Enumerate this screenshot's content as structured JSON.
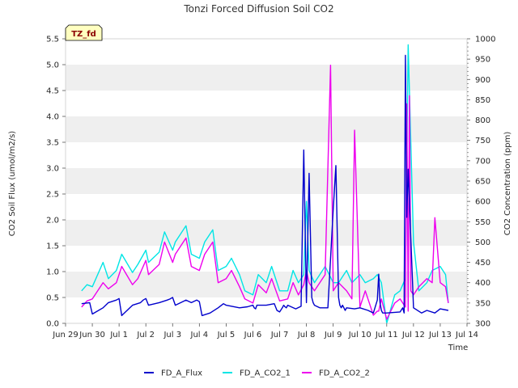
{
  "chart_data": {
    "type": "line",
    "title": "Tonzi Forced Diffusion Soil CO2",
    "badge": "TZ_fd",
    "xlabel": "Time",
    "ylabel_left": "CO2 Soil Flux (umol/m2/s)",
    "ylabel_right": "CO2 Concentration (ppm)",
    "xlim": [
      0,
      15
    ],
    "ylim_left": [
      0,
      5.5
    ],
    "ylim_right": [
      300,
      1000
    ],
    "x_tick_values": [
      0,
      1,
      2,
      3,
      4,
      5,
      6,
      7,
      8,
      9,
      10,
      11,
      12,
      13,
      14,
      15
    ],
    "x_tick_labels": [
      "Jun 29",
      "Jun 30",
      "Jul 1",
      "Jul 2",
      "Jul 3",
      "Jul 4",
      "Jul 5",
      "Jul 6",
      "Jul 7",
      "Jul 8",
      "Jul 9",
      "Jul 10",
      "Jul 11",
      "Jul 12",
      "Jul 13",
      "Jul 14"
    ],
    "y_left_ticks": [
      "0.0",
      "0.5",
      "1.0",
      "1.5",
      "2.0",
      "2.5",
      "3.0",
      "3.5",
      "4.0",
      "4.5",
      "5.0",
      "5.5"
    ],
    "y_right_ticks": [
      "300",
      "350",
      "400",
      "450",
      "500",
      "550",
      "600",
      "650",
      "700",
      "750",
      "800",
      "850",
      "900",
      "950",
      "1000"
    ],
    "band_interval": 0.5,
    "series": [
      {
        "name": "FD_A_Flux",
        "axis": "left",
        "color": "#0000cc",
        "x": [
          0.6,
          0.9,
          1.0,
          1.4,
          1.6,
          1.9,
          2.0,
          2.1,
          2.5,
          2.8,
          2.9,
          3.0,
          3.1,
          3.5,
          3.8,
          3.9,
          4.0,
          4.1,
          4.5,
          4.7,
          4.9,
          5.0,
          5.1,
          5.4,
          5.7,
          5.9,
          6.0,
          6.5,
          6.8,
          7.0,
          7.05,
          7.1,
          7.15,
          7.2,
          7.5,
          7.8,
          7.9,
          8.0,
          8.1,
          8.15,
          8.2,
          8.25,
          8.3,
          8.6,
          8.8,
          8.9,
          9.0,
          9.1,
          9.2,
          9.25,
          9.3,
          9.5,
          9.8,
          10.0,
          10.1,
          10.2,
          10.25,
          10.3,
          10.35,
          10.4,
          10.45,
          10.5,
          10.8,
          11.0,
          11.3,
          11.5,
          11.65,
          11.7,
          11.75,
          11.8,
          11.85,
          11.9,
          12.0,
          12.5,
          12.6,
          12.65,
          12.7,
          12.75,
          12.8,
          13.0,
          13.3,
          13.5,
          13.8,
          14.0,
          14.3
        ],
        "y": [
          0.38,
          0.4,
          0.18,
          0.3,
          0.4,
          0.45,
          0.48,
          0.15,
          0.35,
          0.4,
          0.45,
          0.48,
          0.35,
          0.4,
          0.45,
          0.47,
          0.5,
          0.35,
          0.45,
          0.4,
          0.45,
          0.42,
          0.15,
          0.2,
          0.3,
          0.38,
          0.35,
          0.3,
          0.32,
          0.35,
          0.3,
          0.28,
          0.35,
          0.35,
          0.35,
          0.38,
          0.25,
          0.22,
          0.3,
          0.35,
          0.32,
          0.3,
          0.35,
          0.28,
          0.33,
          3.35,
          0.4,
          2.9,
          0.5,
          0.4,
          0.35,
          0.3,
          0.3,
          2.2,
          3.05,
          0.5,
          0.35,
          0.3,
          0.35,
          0.3,
          0.25,
          0.3,
          0.28,
          0.3,
          0.25,
          0.2,
          0.45,
          0.95,
          0.4,
          0.25,
          0.2,
          0.2,
          0.2,
          0.22,
          0.3,
          0.2,
          5.18,
          2.05,
          2.98,
          0.3,
          0.2,
          0.25,
          0.2,
          0.28,
          0.25
        ]
      },
      {
        "name": "FD_A_CO2_1",
        "axis": "right",
        "color": "#00e5e5",
        "x": [
          0.6,
          0.8,
          1.0,
          1.4,
          1.6,
          1.9,
          2.1,
          2.5,
          2.7,
          3.0,
          3.1,
          3.5,
          3.7,
          4.0,
          4.1,
          4.5,
          4.7,
          5.0,
          5.2,
          5.5,
          5.7,
          6.0,
          6.2,
          6.5,
          6.7,
          7.0,
          7.2,
          7.5,
          7.7,
          8.0,
          8.3,
          8.5,
          8.7,
          8.9,
          9.0,
          9.1,
          9.3,
          9.5,
          9.7,
          10.0,
          10.2,
          10.5,
          10.7,
          11.0,
          11.2,
          11.5,
          11.65,
          11.8,
          12.0,
          12.3,
          12.5,
          12.7,
          12.8,
          13.0,
          13.2,
          13.5,
          13.7,
          14.0,
          14.2,
          14.3
        ],
        "y": [
          380,
          395,
          390,
          450,
          410,
          430,
          470,
          425,
          445,
          480,
          450,
          475,
          525,
          480,
          500,
          540,
          470,
          460,
          500,
          530,
          430,
          440,
          460,
          420,
          380,
          370,
          420,
          400,
          440,
          380,
          380,
          430,
          400,
          420,
          600,
          430,
          400,
          420,
          440,
          400,
          400,
          430,
          400,
          420,
          400,
          410,
          420,
          400,
          300,
          370,
          380,
          410,
          985,
          500,
          380,
          400,
          430,
          440,
          420,
          350
        ]
      },
      {
        "name": "FD_A_CO2_2",
        "axis": "right",
        "color": "#ee00ee",
        "x": [
          0.6,
          0.8,
          1.0,
          1.4,
          1.6,
          1.9,
          2.1,
          2.5,
          2.7,
          3.0,
          3.1,
          3.5,
          3.7,
          4.0,
          4.1,
          4.5,
          4.7,
          5.0,
          5.2,
          5.5,
          5.7,
          6.0,
          6.2,
          6.5,
          6.7,
          7.0,
          7.2,
          7.5,
          7.7,
          8.0,
          8.3,
          8.5,
          8.7,
          8.9,
          9.0,
          9.1,
          9.3,
          9.5,
          9.7,
          9.9,
          10.0,
          10.2,
          10.5,
          10.7,
          10.8,
          11.0,
          11.2,
          11.5,
          11.65,
          11.7,
          11.8,
          12.0,
          12.3,
          12.5,
          12.7,
          12.75,
          12.8,
          12.85,
          12.9,
          13.0,
          13.2,
          13.5,
          13.7,
          13.8,
          14.0,
          14.2,
          14.3
        ],
        "y": [
          340,
          355,
          360,
          400,
          385,
          400,
          440,
          395,
          410,
          455,
          420,
          445,
          500,
          450,
          470,
          510,
          440,
          430,
          470,
          500,
          400,
          410,
          430,
          390,
          360,
          350,
          395,
          375,
          410,
          355,
          360,
          400,
          370,
          395,
          430,
          400,
          380,
          400,
          420,
          935,
          380,
          400,
          380,
          360,
          775,
          340,
          380,
          320,
          330,
          330,
          360,
          310,
          350,
          360,
          340,
          840,
          330,
          860,
          380,
          370,
          390,
          410,
          400,
          560,
          400,
          390,
          350
        ]
      }
    ]
  }
}
